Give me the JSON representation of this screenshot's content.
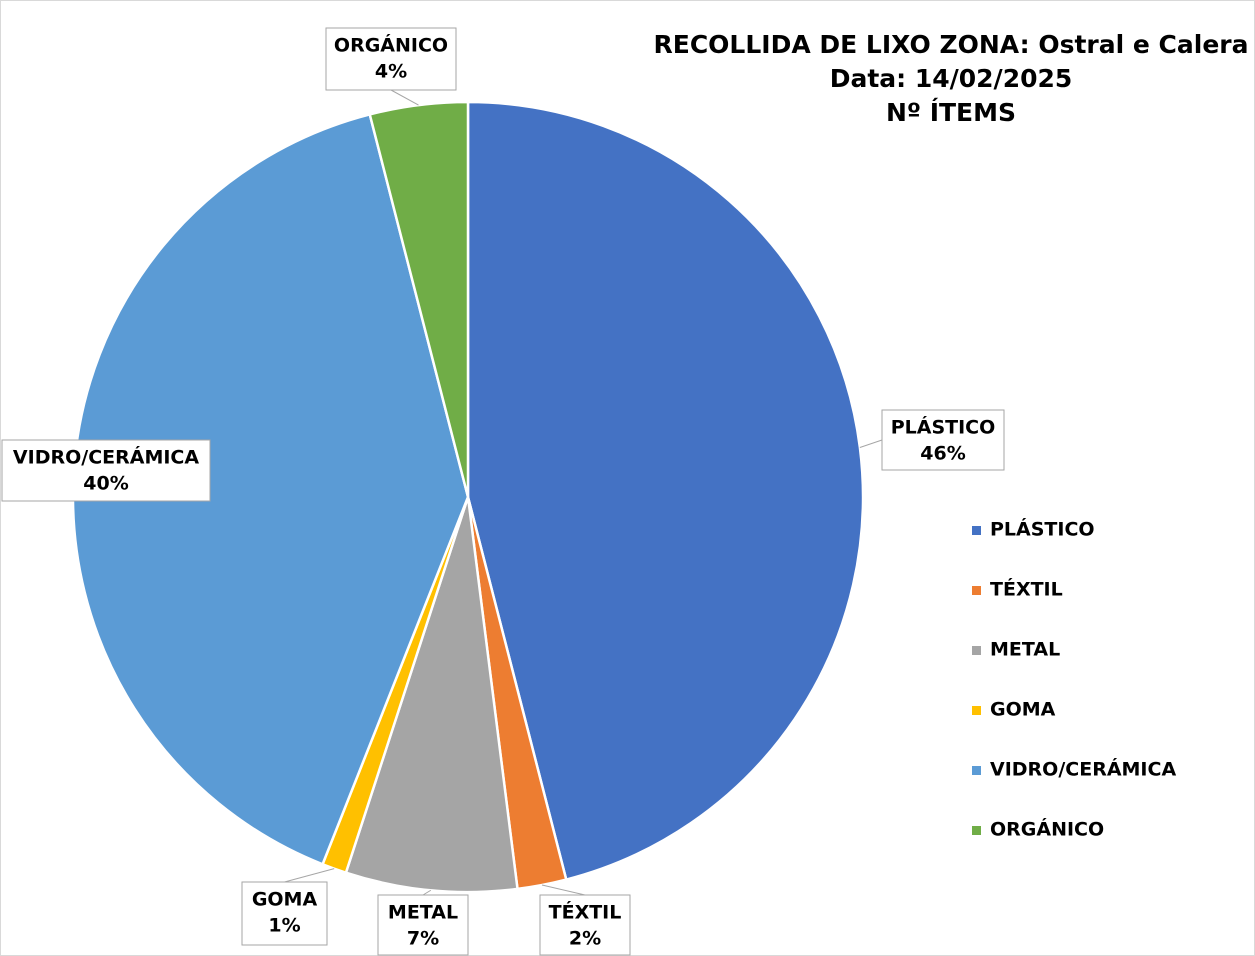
{
  "chart_data": {
    "type": "pie",
    "title": [
      "RECOLLIDA DE LIXO ZONA: Ostral e Calera",
      "Data: 14/02/2025",
      "Nº  ÍTEMS"
    ],
    "categories": [
      "PLÁSTICO",
      "TÉXTIL",
      "METAL",
      "GOMA",
      "VIDRO/CERÁMICA",
      "ORGÁNICO"
    ],
    "values": [
      46,
      2,
      7,
      1,
      40,
      4
    ],
    "value_labels": [
      "46%",
      "2%",
      "7%",
      "1%",
      "40%",
      "4%"
    ],
    "colors": [
      "#4472c4",
      "#ed7d31",
      "#a5a5a5",
      "#ffc000",
      "#5b9bd5",
      "#70ad47"
    ],
    "legend": "right"
  }
}
